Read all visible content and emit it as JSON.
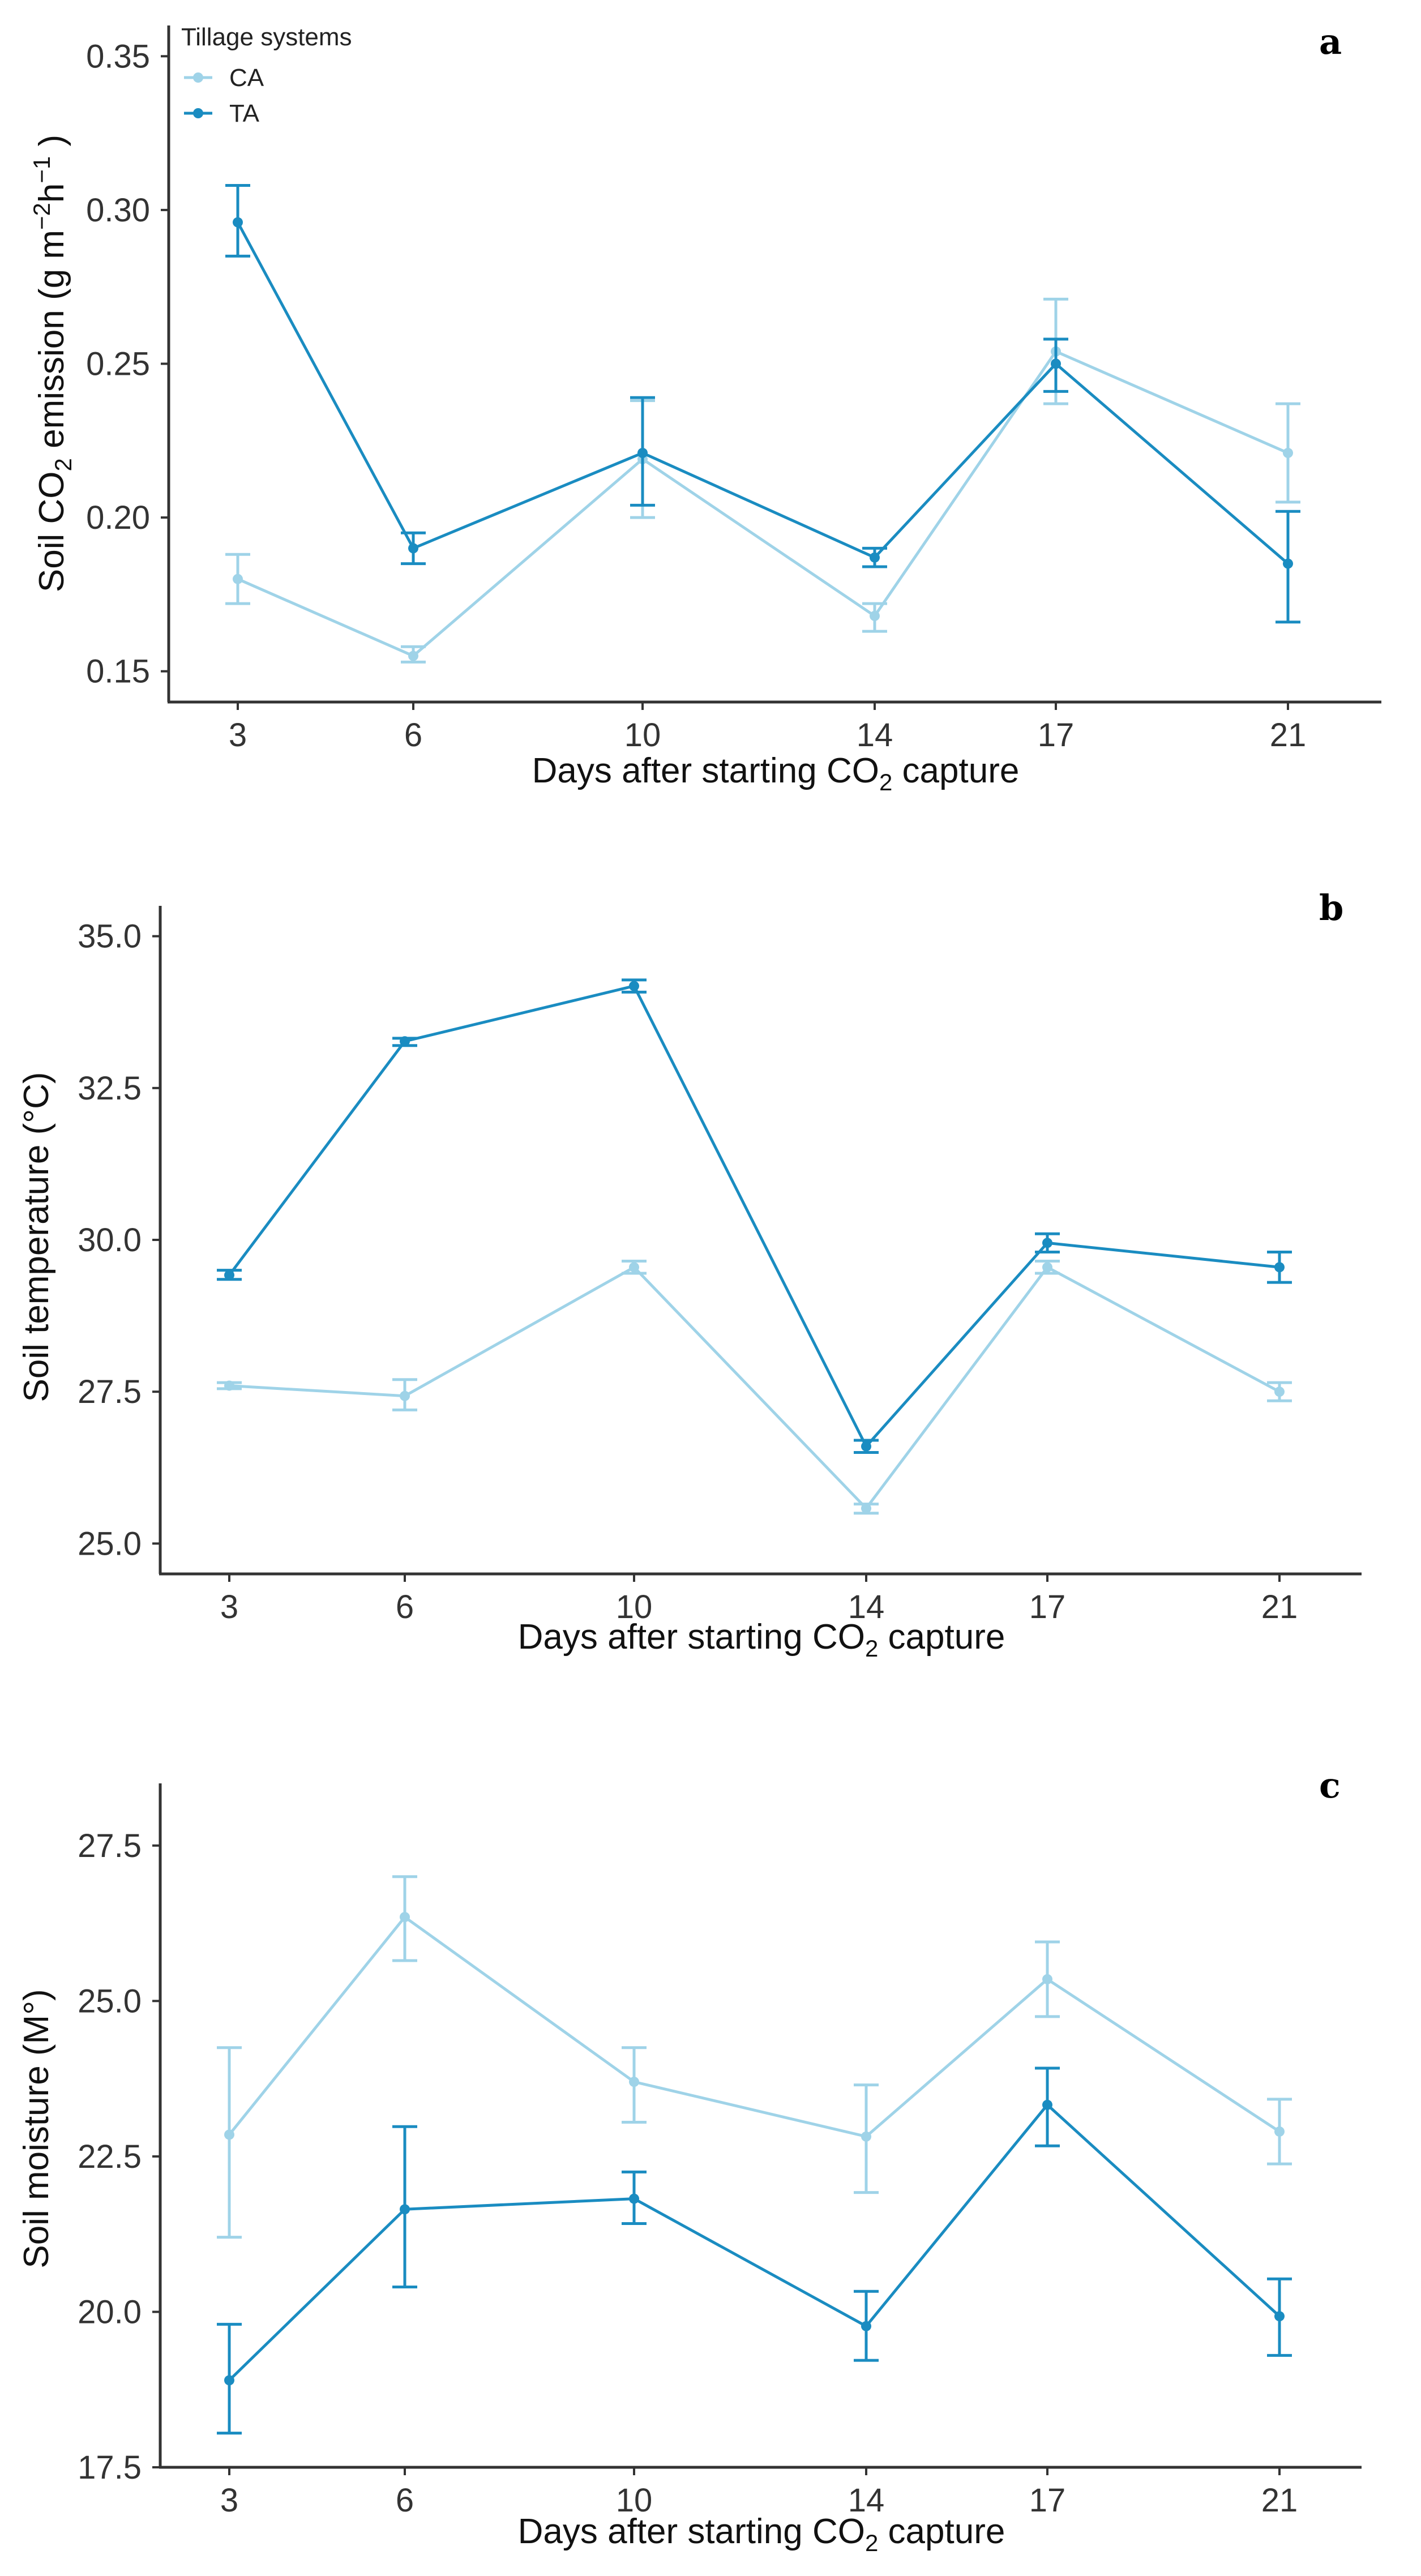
{
  "figure": {
    "legend": {
      "title": "Tillage systems",
      "entries": [
        {
          "label": "CA",
          "color": "#9fd3e8"
        },
        {
          "label": "TA",
          "color": "#1a8cc1"
        }
      ]
    }
  },
  "chart_data": [
    {
      "type": "line",
      "panel": "a",
      "xlabel": "Days after starting CO2 capture",
      "ylabel": "Soil CO2 emission (g m-2h-1)",
      "categories": [
        "3",
        "6",
        "10",
        "14",
        "17",
        "21"
      ],
      "ylim": [
        0.14,
        0.36
      ],
      "yticks": [
        "0.15",
        "0.20",
        "0.25",
        "0.30",
        "0.35"
      ],
      "legend_position": "top-left",
      "series": [
        {
          "name": "CA",
          "color": "#9fd3e8",
          "values": [
            0.18,
            0.155,
            0.219,
            0.168,
            0.254,
            0.221
          ],
          "err_low": [
            0.172,
            0.153,
            0.2,
            0.163,
            0.237,
            0.205
          ],
          "err_high": [
            0.188,
            0.158,
            0.238,
            0.172,
            0.271,
            0.237
          ]
        },
        {
          "name": "TA",
          "color": "#1a8cc1",
          "values": [
            0.296,
            0.19,
            0.221,
            0.187,
            0.25,
            0.185
          ],
          "err_low": [
            0.285,
            0.185,
            0.204,
            0.184,
            0.241,
            0.166
          ],
          "err_high": [
            0.308,
            0.195,
            0.239,
            0.19,
            0.258,
            0.202
          ]
        }
      ]
    },
    {
      "type": "line",
      "panel": "b",
      "xlabel": "Days after starting CO2 capture",
      "ylabel": "Soil temperature (°C)",
      "categories": [
        "3",
        "6",
        "10",
        "14",
        "17",
        "21"
      ],
      "ylim": [
        24.5,
        35.5
      ],
      "yticks": [
        "25.0",
        "27.5",
        "30.0",
        "32.5",
        "35.0"
      ],
      "series": [
        {
          "name": "CA",
          "color": "#9fd3e8",
          "values": [
            27.6,
            27.43,
            29.55,
            25.58,
            29.55,
            27.5
          ],
          "err_low": [
            27.55,
            27.2,
            29.45,
            25.5,
            29.45,
            27.35
          ],
          "err_high": [
            27.65,
            27.7,
            29.65,
            25.65,
            29.65,
            27.65
          ]
        },
        {
          "name": "TA",
          "color": "#1a8cc1",
          "values": [
            29.42,
            33.27,
            34.18,
            26.6,
            29.95,
            29.55
          ],
          "err_low": [
            29.35,
            33.2,
            34.08,
            26.5,
            29.8,
            29.3
          ],
          "err_high": [
            29.5,
            33.32,
            34.28,
            26.7,
            30.1,
            29.8
          ]
        }
      ]
    },
    {
      "type": "line",
      "panel": "c",
      "xlabel": "Days after starting CO2 capture",
      "ylabel": "Soil moisture (M°)",
      "categories": [
        "3",
        "6",
        "10",
        "14",
        "17",
        "21"
      ],
      "ylim": [
        17.5,
        28.5
      ],
      "yticks": [
        "17.5",
        "20.0",
        "22.5",
        "25.0",
        "27.5"
      ],
      "series": [
        {
          "name": "CA",
          "color": "#9fd3e8",
          "values": [
            22.85,
            26.35,
            23.7,
            22.82,
            25.35,
            22.9
          ],
          "err_low": [
            21.2,
            25.65,
            23.05,
            21.92,
            24.75,
            22.38
          ],
          "err_high": [
            24.25,
            27.0,
            24.25,
            23.65,
            25.95,
            23.42
          ]
        },
        {
          "name": "TA",
          "color": "#1a8cc1",
          "values": [
            18.9,
            21.65,
            21.82,
            19.77,
            23.33,
            19.93
          ],
          "err_low": [
            18.05,
            20.4,
            21.42,
            19.22,
            22.67,
            19.3
          ],
          "err_high": [
            19.8,
            22.98,
            22.25,
            20.33,
            23.92,
            20.53
          ]
        }
      ]
    }
  ]
}
